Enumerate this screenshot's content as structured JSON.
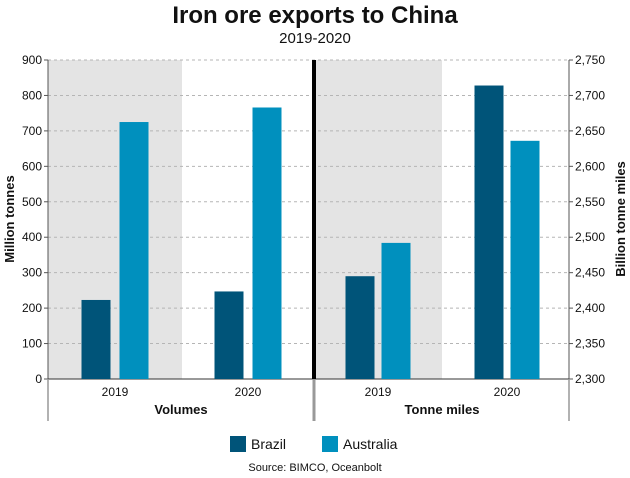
{
  "title": "Iron ore exports to China",
  "subtitle": "2019-2020",
  "source": "Source: BIMCO, Oceanbolt",
  "colors": {
    "brazil": "#005479",
    "australia": "#0090be",
    "shade": "#e4e4e4",
    "divider": "#000000"
  },
  "chart_data": [
    {
      "type": "bar",
      "group": "Volumes",
      "categories": [
        "2019",
        "2020"
      ],
      "series": [
        {
          "name": "Brazil",
          "values": [
            223,
            247
          ]
        },
        {
          "name": "Australia",
          "values": [
            725,
            766
          ]
        }
      ],
      "ylabel": "Million tonnes",
      "ylim": [
        0,
        900
      ],
      "yticks": [
        "0",
        "100",
        "200",
        "300",
        "400",
        "500",
        "600",
        "700",
        "800",
        "900"
      ],
      "grid": true
    },
    {
      "type": "bar",
      "group": "Tonne miles",
      "categories": [
        "2019",
        "2020"
      ],
      "series": [
        {
          "name": "Brazil",
          "values": [
            2445,
            2714
          ]
        },
        {
          "name": "Australia",
          "values": [
            2492,
            2636
          ]
        }
      ],
      "ylabel": "Billion tonne miles",
      "ylim": [
        2300,
        2750
      ],
      "yticks": [
        "2,300",
        "2,350",
        "2,400",
        "2,450",
        "2,500",
        "2,550",
        "2,600",
        "2,650",
        "2,700",
        "2,750"
      ],
      "grid": true
    }
  ],
  "legend": {
    "position": "bottom",
    "items": [
      "Brazil",
      "Australia"
    ]
  }
}
